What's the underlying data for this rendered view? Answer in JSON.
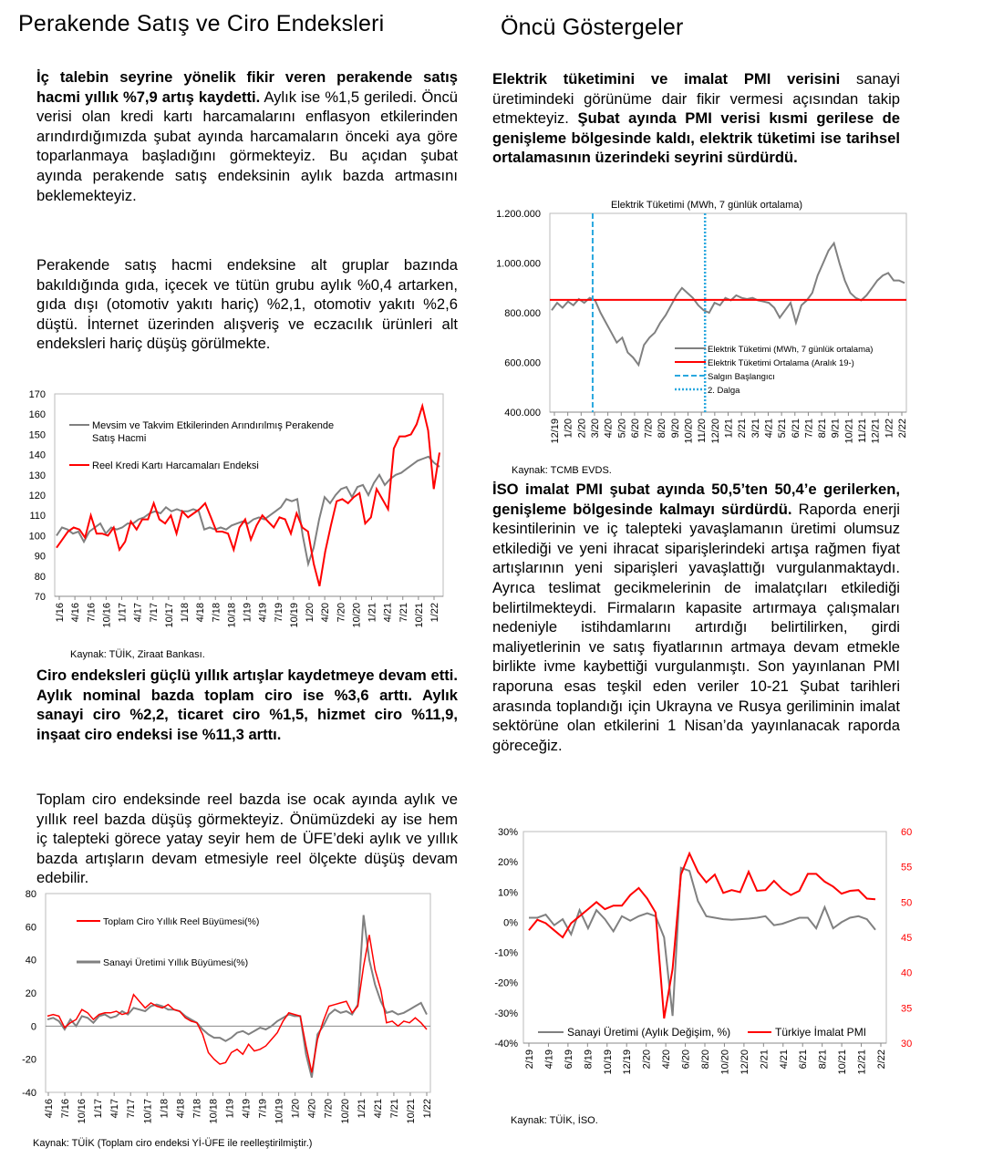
{
  "left": {
    "title": "Perakende Satış ve Ciro Endeksleri",
    "p1_bold": "İç talebin seyrine yönelik fikir veren perakende satış hacmi yıllık %7,9 artış kaydetti.",
    "p1_rest": " Aylık ise %1,5 geriledi. Öncü verisi olan kredi kartı harcamalarını enflasyon etkilerinden arındırdığımızda şubat ayında harcamaların önceki aya göre toparlanmaya başladığını görmekteyiz. Bu açıdan şubat ayında perakende satış endeksinin aylık bazda artmasını beklemekteyiz.",
    "p2": "Perakende satış hacmi endeksine alt gruplar bazında bakıldığında gıda, içecek ve tütün grubu aylık %0,4 artarken, gıda dışı (otomotiv yakıtı hariç) %2,1, otomotiv yakıtı %2,6 düştü. İnternet üzerinden alışveriş ve eczacılık ürünleri alt endeksleri hariç düşüş görülmekte.",
    "source1": "Kaynak: TÜİK, Ziraat Bankası.",
    "p3_bold": "Ciro endeksleri güçlü yıllık artışlar kaydetmeye devam etti. Aylık nominal bazda toplam ciro ise %3,6 arttı. Aylık sanayi ciro %2,2, ticaret ciro %1,5, hizmet ciro %11,9, inşaat ciro endeksi ise %11,3 arttı.",
    "p4": "Toplam ciro endeksinde reel bazda ise ocak ayında aylık ve yıllık reel bazda düşüş görmekteyiz. Önümüzdeki ay ise hem iç talepteki görece yatay seyir hem de ÜFE’deki aylık ve yıllık bazda artışların devam etmesiyle reel ölçekte düşüş devam edebilir.",
    "source2": "Kaynak: TÜİK (Toplam ciro endeksi Yİ-ÜFE ile reelleştirilmiştir.)"
  },
  "right": {
    "title": "Öncü Göstergeler",
    "p1_bold1": "Elektrik tüketimini ve imalat PMI verisini",
    "p1_mid": " sanayi üretimindeki görünüme dair fikir vermesi açısından takip etmekteyiz. ",
    "p1_bold2": "Şubat ayında PMI verisi kısmi gerilese de genişleme bölgesinde kaldı, elektrik tüketimi ise tarihsel ortalamasının üzerindeki seyrini sürdürdü.",
    "source1": "Kaynak: TCMB EVDS.",
    "p2_bold": "İSO imalat PMI şubat ayında 50,5’ten 50,4’e gerilerken, genişleme bölgesinde kalmayı sürdürdü.",
    "p2_rest": " Raporda enerji kesintilerinin ve iç talepteki yavaşlamanın üretimi olumsuz etkilediği ve yeni ihracat siparişlerindeki artışa rağmen fiyat artışlarının yeni siparişleri yavaşlattığı vurgulanmaktaydı. Ayrıca teslimat gecikmelerinin de imalatçıları etkilediği belirtilmekteydi. Firmaların kapasite artırmaya çalışmaları nedeniyle istihdamlarını artırdığı belirtilirken, girdi maliyetlerinin ve satış fiyatlarının artmaya devam etmekle birlikte ivme kaybettiği vurgulanmıştı. Son yayınlanan PMI raporuna esas teşkil eden veriler 10-21 Şubat tarihleri arasında toplandığı için Ukrayna ve Rusya geriliminin imalat sektörüne olan etkilerini 1 Nisan’da yayınlanacak raporda göreceğiz.",
    "source2": "Kaynak: TÜİK, İSO."
  },
  "chart_data": [
    {
      "type": "line",
      "id": "retail",
      "ylim": [
        70,
        170
      ],
      "yticks": [
        70,
        80,
        90,
        100,
        110,
        120,
        130,
        140,
        150,
        160,
        170
      ],
      "xticks": [
        "1/16",
        "4/16",
        "7/16",
        "10/16",
        "1/17",
        "4/17",
        "7/17",
        "10/17",
        "1/18",
        "4/18",
        "7/18",
        "10/18",
        "1/19",
        "4/19",
        "7/19",
        "10/19",
        "1/20",
        "4/20",
        "7/20",
        "10/20",
        "1/21",
        "4/21",
        "7/21",
        "10/21",
        "1/22"
      ],
      "series": [
        {
          "name": "Mevsim ve Takvim Etkilerinden Arındırılmış Perakende Satış Hacmi",
          "color": "#808080",
          "values": [
            100,
            104,
            103,
            101,
            102,
            97,
            102,
            104,
            106,
            101,
            104,
            103,
            104,
            106,
            106,
            108,
            109,
            111,
            112,
            111,
            114,
            112,
            113,
            112,
            112,
            113,
            112,
            103,
            104,
            103,
            104,
            103,
            105,
            106,
            107,
            106,
            108,
            109,
            108,
            110,
            112,
            114,
            118,
            117,
            118,
            100,
            86,
            94,
            108,
            119,
            116,
            120,
            123,
            124,
            119,
            124,
            125,
            120,
            126,
            130,
            125,
            128,
            130,
            131,
            133,
            135,
            137,
            138,
            139,
            136,
            134
          ]
        },
        {
          "name": "Reel Kredi Kartı Harcamaları Endeksi",
          "color": "#ff0000",
          "values": [
            94,
            98,
            102,
            104,
            103,
            99,
            110,
            101,
            101,
            100,
            104,
            93,
            97,
            107,
            103,
            108,
            108,
            116,
            108,
            106,
            110,
            101,
            112,
            109,
            111,
            113,
            116,
            109,
            102,
            102,
            101,
            93,
            104,
            108,
            98,
            105,
            110,
            107,
            104,
            109,
            108,
            101,
            111,
            104,
            102,
            86,
            75,
            92,
            105,
            117,
            118,
            116,
            119,
            121,
            106,
            109,
            123,
            118,
            113,
            143,
            149,
            149,
            150,
            155,
            164,
            152,
            123,
            141
          ]
        }
      ]
    },
    {
      "type": "line",
      "id": "turnover",
      "ylim": [
        -40,
        80
      ],
      "yticks": [
        -40,
        -20,
        0,
        20,
        40,
        60,
        80
      ],
      "xticks": [
        "4/16",
        "7/16",
        "10/16",
        "1/17",
        "4/17",
        "7/17",
        "10/17",
        "1/18",
        "4/18",
        "7/18",
        "10/18",
        "1/19",
        "4/19",
        "7/19",
        "10/19",
        "1/20",
        "4/20",
        "7/20",
        "10/20",
        "1/21",
        "4/21",
        "7/21",
        "10/21",
        "1/22"
      ],
      "series": [
        {
          "name": "Toplam Ciro Yıllık Reel Büyümesi(%)",
          "color": "#ff0000",
          "values": [
            6,
            7,
            6,
            -1,
            2,
            4,
            10,
            8,
            4,
            7,
            8,
            8,
            9,
            7,
            8,
            19,
            15,
            11,
            14,
            12,
            11,
            13,
            10,
            9,
            5,
            3,
            2,
            -5,
            -16,
            -20,
            -23,
            -22,
            -16,
            -14,
            -17,
            -11,
            -15,
            -14,
            -12,
            -8,
            -4,
            3,
            8,
            7,
            6,
            -12,
            -28,
            -8,
            3,
            12,
            13,
            14,
            15,
            8,
            12,
            36,
            55,
            34,
            22,
            2,
            3,
            0,
            3,
            2,
            5,
            2,
            -2
          ]
        },
        {
          "name": "Sanayi Üretimi Yıllık Büyümesi(%)",
          "color": "#808080",
          "values": [
            4,
            5,
            3,
            -2,
            4,
            0,
            6,
            5,
            2,
            6,
            7,
            5,
            6,
            9,
            7,
            11,
            10,
            9,
            12,
            13,
            12,
            10,
            10,
            9,
            6,
            4,
            2,
            -2,
            -5,
            -7,
            -7,
            -9,
            -7,
            -4,
            -3,
            -5,
            -3,
            -1,
            -2,
            0,
            3,
            5,
            7,
            6,
            6,
            -17,
            -31,
            -5,
            0,
            7,
            10,
            8,
            9,
            7,
            13,
            67,
            40,
            25,
            15,
            8,
            9,
            7,
            8,
            10,
            12,
            14,
            7
          ]
        }
      ]
    },
    {
      "type": "line",
      "id": "electricity",
      "title": "Elektrik Tüketimi  (MWh, 7 günlük ortalama)",
      "ylim": [
        400000,
        1200000
      ],
      "yticks": [
        "400.000",
        "600.000",
        "800.000",
        "1.000.000",
        "1.200.000"
      ],
      "xticks": [
        "12/19",
        "1/20",
        "2/20",
        "3/20",
        "4/20",
        "5/20",
        "6/20",
        "7/20",
        "8/20",
        "9/20",
        "10/20",
        "11/20",
        "12/20",
        "1/21",
        "2/21",
        "3/21",
        "4/21",
        "5/21",
        "6/21",
        "7/21",
        "8/21",
        "9/21",
        "10/21",
        "11/21",
        "12/21",
        "1/22",
        "2/22"
      ],
      "series": [
        {
          "name": "Elektrik Tüketimi (MWh, 7 günlük ortalama)",
          "color": "#808080",
          "values": [
            810000,
            840000,
            820000,
            845000,
            830000,
            855000,
            840000,
            860000,
            850000,
            800000,
            760000,
            720000,
            680000,
            700000,
            640000,
            620000,
            590000,
            670000,
            700000,
            720000,
            760000,
            790000,
            830000,
            870000,
            900000,
            880000,
            860000,
            830000,
            810000,
            800000,
            840000,
            830000,
            860000,
            850000,
            870000,
            860000,
            855000,
            860000,
            850000,
            845000,
            840000,
            820000,
            780000,
            810000,
            840000,
            760000,
            830000,
            850000,
            880000,
            950000,
            1000000,
            1050000,
            1080000,
            1000000,
            930000,
            880000,
            860000,
            850000,
            870000,
            900000,
            930000,
            950000,
            960000,
            930000,
            930000,
            920000
          ]
        },
        {
          "name": "Elektrik Tüketimi Ortalama (Aralık 19-)",
          "color": "#ff0000",
          "values": [
            852000
          ]
        },
        {
          "name": "Salgın Başlangıcı",
          "color": "#2aa8df",
          "x": "3/20"
        },
        {
          "name": "2. Dalga",
          "color": "#2aa8df",
          "x": "11/20"
        }
      ]
    },
    {
      "type": "line",
      "id": "pmi",
      "ylim": [
        -40,
        30
      ],
      "y2lim": [
        30,
        60
      ],
      "yticks": [
        "-40%",
        "-30%",
        "-20%",
        "-10%",
        "0%",
        "10%",
        "20%",
        "30%"
      ],
      "y2ticks": [
        "30",
        "35",
        "40",
        "45",
        "50",
        "55",
        "60"
      ],
      "xticks": [
        "2/19",
        "4/19",
        "6/19",
        "8/19",
        "10/19",
        "12/19",
        "2/20",
        "4/20",
        "6/20",
        "8/20",
        "10/20",
        "12/20",
        "2/21",
        "4/21",
        "6/21",
        "8/21",
        "10/21",
        "12/21",
        "2/22"
      ],
      "series": [
        {
          "name": "Sanayi Üretimi (Aylık Değişim, %)",
          "color": "#808080",
          "axis": "left",
          "values": [
            1.5,
            1.5,
            2.5,
            -1,
            1,
            -4,
            4,
            -2,
            4,
            1,
            -3,
            2,
            0.5,
            2,
            3,
            2,
            -5,
            -31,
            18,
            17,
            7,
            2,
            1.5,
            1,
            0.8,
            1,
            1.2,
            1.5,
            2,
            -1,
            -0.5,
            0.5,
            1.5,
            1.5,
            -2,
            5,
            -2,
            0,
            1.5,
            2,
            1,
            -2.5
          ]
        },
        {
          "name": "Türkiye İmalat PMI",
          "color": "#ff0000",
          "axis": "right",
          "values": [
            46,
            47.5,
            47,
            46,
            45,
            47,
            48,
            49,
            50,
            49,
            49.5,
            49.5,
            51,
            52,
            50.5,
            48.5,
            33.5,
            40.5,
            53.9,
            56.9,
            54.3,
            52.8,
            53.9,
            51.3,
            51.7,
            51.4,
            54.3,
            51.6,
            51.7,
            53,
            51.8,
            51,
            51.6,
            54,
            54,
            52.9,
            52.2,
            51.2,
            51.6,
            51.7,
            50.5,
            50.4
          ]
        }
      ]
    }
  ]
}
